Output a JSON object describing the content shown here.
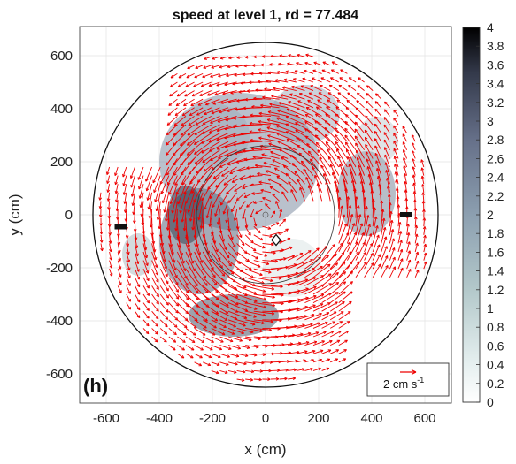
{
  "chart_data": {
    "type": "quiver",
    "title": "speed at level 1, rd = 77.484",
    "xlabel": "x (cm)",
    "ylabel": "y (cm)",
    "xlim": [
      -700,
      700
    ],
    "ylim": [
      -700,
      700
    ],
    "xticks": [
      -600,
      -400,
      -200,
      0,
      200,
      400,
      600
    ],
    "yticks": [
      -600,
      -400,
      -200,
      0,
      200,
      400,
      600
    ],
    "grid": true,
    "panel_label": "(h)",
    "domain_radius": 650,
    "inner_ring_radius": 260,
    "colorbar": {
      "min": 0,
      "max": 4,
      "ticks": [
        0,
        0.2,
        0.4,
        0.6,
        0.8,
        1,
        1.2,
        1.4,
        1.6,
        1.8,
        2,
        2.2,
        2.4,
        2.6,
        2.8,
        3,
        3.2,
        3.4,
        3.6,
        3.8,
        4
      ],
      "tick_labels": [
        "0",
        "0.2",
        "0.4",
        "0.6",
        "0.8",
        "1",
        "1.2",
        "1.4",
        "1.6",
        "1.8",
        "2",
        "2.2",
        "2.4",
        "2.6",
        "2.8",
        "3",
        "3.2",
        "3.4",
        "3.6",
        "3.8",
        "4"
      ],
      "colormap": "bone-reversed"
    },
    "vector_key": {
      "label": "2 cm s",
      "exponent": "-1",
      "magnitude": 2,
      "location": "bottom-right"
    },
    "vector_field": "anticlockwise rotating flow centered near (0, 0)",
    "markers": [
      {
        "kind": "rectangle",
        "x": -545,
        "y": -45
      },
      {
        "kind": "rectangle",
        "x": 530,
        "y": 0
      },
      {
        "kind": "diamond",
        "x": 40,
        "y": -95
      },
      {
        "kind": "small-circle",
        "x": 0,
        "y": 0
      }
    ],
    "colors": {
      "arrows": "#ee0000",
      "circle": "#111111",
      "grid": "#e3e3e3"
    }
  }
}
